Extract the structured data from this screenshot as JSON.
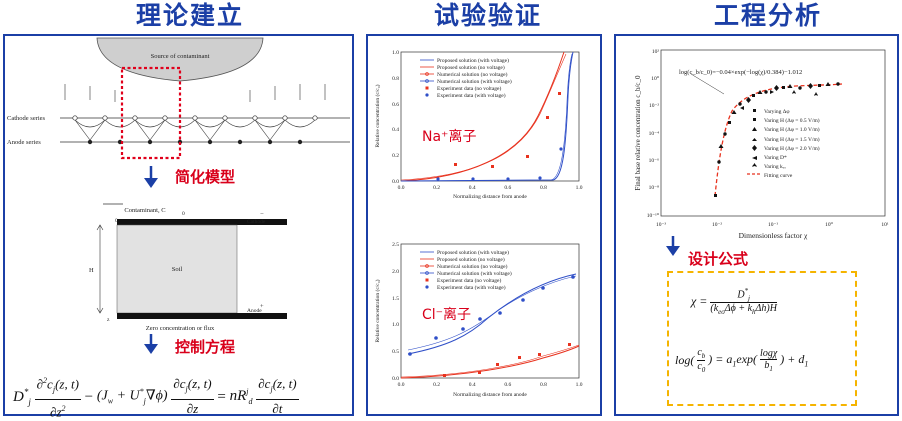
{
  "titles": {
    "theory": "理论建立",
    "validation": "试验验证",
    "engineering": "工程分析"
  },
  "theory": {
    "source_label": "Source of contaminant",
    "cathode_series": "Cathode series",
    "anode_series": "Anode series",
    "simplify_label": "简化模型",
    "contaminant_label": "Contaminant, C",
    "contaminant_sub": "0",
    "zero_label": "0",
    "cathode_label": "Cathode",
    "soil_label": "Soil",
    "h_label": "H",
    "z_label": "z",
    "anode_label": "Anode",
    "minus_sign": "−",
    "plus_sign": "+",
    "zero_conc_label": "Zero concentration or flux",
    "control_label": "控制方程"
  },
  "validation": {
    "na_label": "Na⁺离子",
    "cl_label": "Cl⁻离子",
    "legend": [
      "Proposed solution (with voltage)",
      "Proposed solution (no voltage)",
      "Numerical solution (no voltage)",
      "Numerical solution (with voltage)",
      "Experiment data (no voltage)",
      "Experiment data (with voltage)"
    ],
    "y_axis_label": "Relative concentration (c/c₀)",
    "x_axis_label": "Normalizing distance from anode",
    "ticks_x": [
      "0.0",
      "0.2",
      "0.4",
      "0.6",
      "0.8",
      "1.0"
    ],
    "ticks_y_na": [
      "0.0",
      "0.2",
      "0.4",
      "0.6",
      "0.8",
      "1.0"
    ],
    "ticks_y_cl": [
      "0.0",
      "0.5",
      "1.0",
      "1.5",
      "2.0",
      "2.5"
    ],
    "colors": {
      "with_voltage": "#2f4fc8",
      "no_voltage": "#e8321e"
    }
  },
  "engineering": {
    "fit_formula": "log(c_b/c_0)=−0.04×exp(−log(χ)/0.384)−1.012",
    "y_axis_label": "Final base relative concentration c_b/c_0",
    "x_axis_label": "Dimensionless factor χ",
    "x_ticks": [
      "10⁻³",
      "10⁻²",
      "10⁻¹",
      "10⁰",
      "10¹"
    ],
    "y_ticks": [
      "10²",
      "10⁰",
      "10⁻²",
      "10⁻⁴",
      "10⁻⁶",
      "10⁻⁸",
      "10⁻¹⁰"
    ],
    "legend": [
      "Varying Δφ",
      "Varing H (Δφ = 0.5 V/m)",
      "Varing H (Δφ = 1.0 V/m)",
      "Varing H (Δφ = 1.5 V/m)",
      "Varing H (Δφ = 2.0 V/m)",
      "Varing D*",
      "Varing kₑₒ",
      "Fitting curve"
    ],
    "design_label": "设计公式"
  }
}
